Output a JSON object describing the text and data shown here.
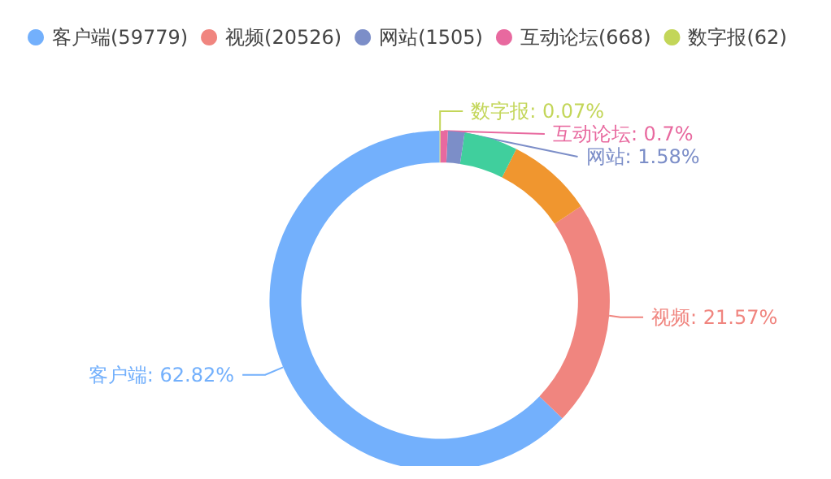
{
  "chart_data": {
    "type": "donut",
    "categories": [
      "客户端(59779)",
      "视频(20526)",
      null,
      null,
      "网站(1505)",
      "互动论坛(668)",
      "数字报(62)"
    ],
    "values": [
      62.82,
      21.57,
      8.17,
      5.09,
      1.58,
      0.7,
      0.07
    ],
    "colors": [
      "#73b0fc",
      "#f0857f",
      "#f0962f",
      "#40cf9d",
      "#7c8ec8",
      "#e8699f",
      "#c3d659"
    ],
    "value_labels": [
      "客户端: 62.82%",
      "视频: 21.57%",
      null,
      null,
      "网站: 1.58%",
      "互动论坛: 0.7%",
      "数字报: 0.07%"
    ],
    "legend": "top left"
  }
}
